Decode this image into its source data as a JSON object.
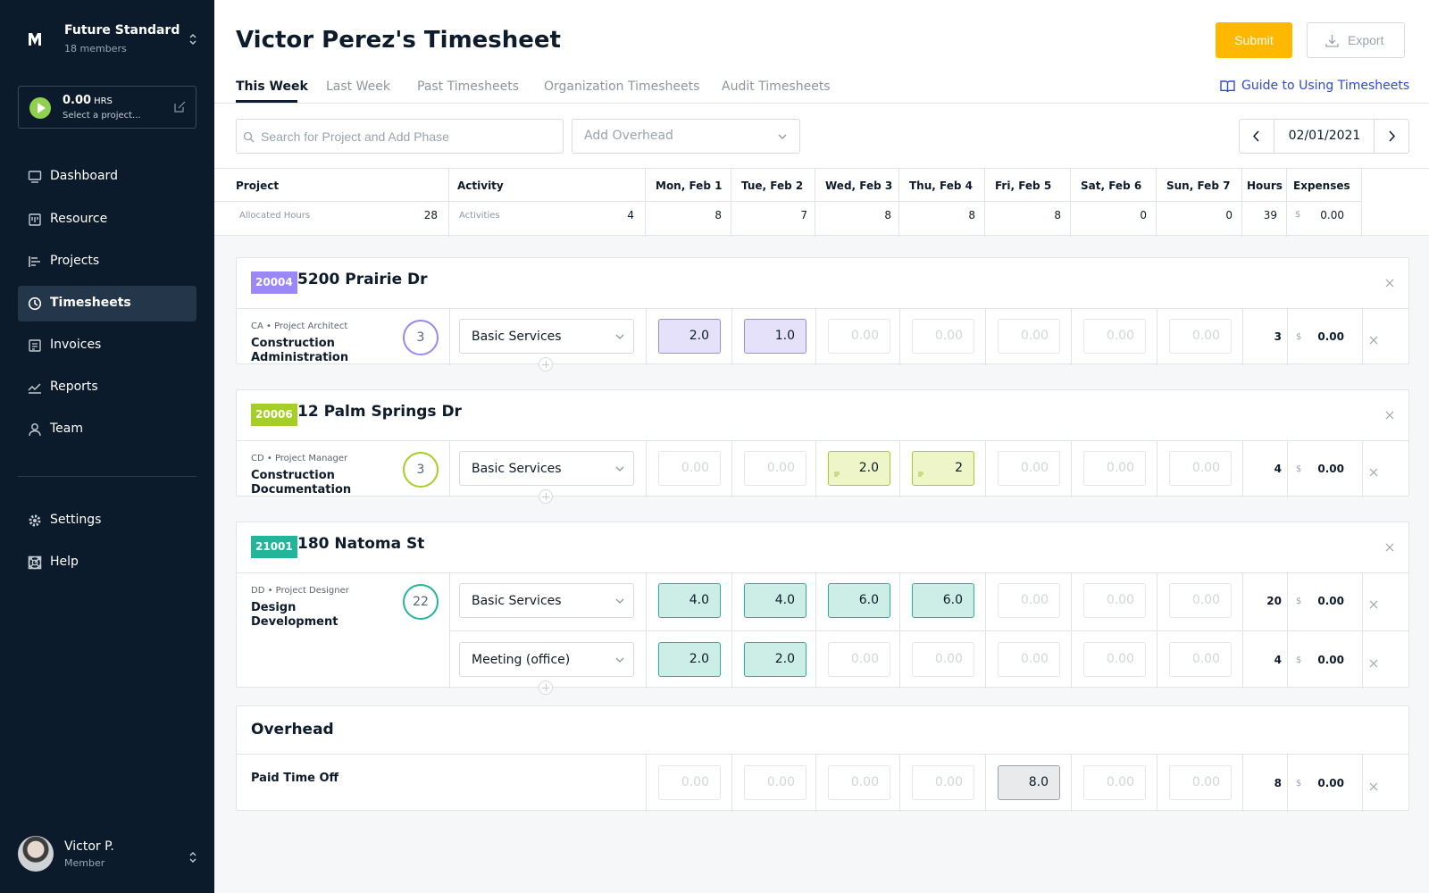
{
  "org": {
    "name": "Future Standard",
    "members": "18 members"
  },
  "timer": {
    "hours": "0.00",
    "unit": "HRS",
    "prompt": "Select a project..."
  },
  "nav": [
    {
      "label": "Dashboard",
      "icon": "monitor-icon"
    },
    {
      "label": "Resource",
      "icon": "calendar-icon"
    },
    {
      "label": "Projects",
      "icon": "gantt-icon"
    },
    {
      "label": "Timesheets",
      "icon": "clock-icon",
      "active": true
    },
    {
      "label": "Invoices",
      "icon": "invoice-icon"
    },
    {
      "label": "Reports",
      "icon": "chart-icon"
    },
    {
      "label": "Team",
      "icon": "person-icon"
    }
  ],
  "nav2": [
    {
      "label": "Settings",
      "icon": "gear-icon"
    },
    {
      "label": "Help",
      "icon": "lifebuoy-icon"
    }
  ],
  "user": {
    "name": "Victor P.",
    "role": "Member"
  },
  "page": {
    "title": "Victor Perez's Timesheet",
    "submit": "Submit",
    "export": "Export",
    "guide": "Guide to Using Timesheets"
  },
  "tabs": [
    "This Week",
    "Last Week",
    "Past Timesheets",
    "Organization Timesheets",
    "Audit Timesheets"
  ],
  "search": {
    "placeholder": "Search for Project and Add Phase"
  },
  "overhead_select": {
    "placeholder": "Add Overhead"
  },
  "date": "02/01/2021",
  "header": {
    "project": "Project",
    "activity": "Activity",
    "days": [
      "Mon, Feb 1",
      "Tue, Feb 2",
      "Wed, Feb 3",
      "Thu, Feb 4",
      "Fri, Feb 5",
      "Sat, Feb 6",
      "Sun, Feb 7"
    ],
    "hours": "Hours",
    "expenses": "Expenses",
    "allocated_label": "Allocated Hours",
    "allocated_value": "28",
    "activities_label": "Activities",
    "activities_value": "4",
    "day_totals": [
      "8",
      "7",
      "8",
      "8",
      "8",
      "0",
      "0"
    ],
    "hours_total": "39",
    "currency": "$",
    "expenses_total": "0.00"
  },
  "projects": [
    {
      "code": "20004",
      "name": "5200 Prairie Dr",
      "color": "#9b87f5",
      "fill": "#e6e1fb",
      "role": "CA • Project Architect",
      "phase": "Construction Administration",
      "allocated": "3",
      "rows": [
        {
          "activity": "Basic Services",
          "hours": [
            "2.0",
            "1.0",
            "0.00",
            "0.00",
            "0.00",
            "0.00",
            "0.00"
          ],
          "filled": [
            true,
            true,
            false,
            false,
            false,
            false,
            false
          ],
          "total": "3",
          "expenses": "0.00"
        }
      ]
    },
    {
      "code": "20006",
      "name": "12 Palm Springs Dr",
      "color": "#a5cf25",
      "fill": "#eef6c9",
      "role": "CD • Project Manager",
      "phase": "Construction Documentation",
      "allocated": "3",
      "rows": [
        {
          "activity": "Basic Services",
          "hours": [
            "0.00",
            "0.00",
            "2.0",
            "2",
            "0.00",
            "0.00",
            "0.00"
          ],
          "filled": [
            false,
            false,
            true,
            true,
            false,
            false,
            false
          ],
          "total": "4",
          "expenses": "0.00"
        }
      ]
    },
    {
      "code": "21001",
      "name": "180 Natoma St",
      "color": "#22b59a",
      "fill": "#cdeee6",
      "role": "DD • Project Designer",
      "phase": "Design Development",
      "allocated": "22",
      "rows": [
        {
          "activity": "Basic Services",
          "hours": [
            "4.0",
            "4.0",
            "6.0",
            "6.0",
            "0.00",
            "0.00",
            "0.00"
          ],
          "filled": [
            true,
            true,
            true,
            true,
            false,
            false,
            false
          ],
          "total": "20",
          "expenses": "0.00"
        },
        {
          "activity": "Meeting (office)",
          "hours": [
            "2.0",
            "2.0",
            "0.00",
            "0.00",
            "0.00",
            "0.00",
            "0.00"
          ],
          "filled": [
            true,
            true,
            false,
            false,
            false,
            false,
            false
          ],
          "total": "4",
          "expenses": "0.00"
        }
      ]
    }
  ],
  "overhead": {
    "title": "Overhead",
    "item": "Paid Time Off",
    "hours": [
      "0.00",
      "0.00",
      "0.00",
      "0.00",
      "8.0",
      "0.00",
      "0.00"
    ],
    "filled": [
      false,
      false,
      false,
      false,
      true,
      false,
      false
    ],
    "fill": "#e8eaec",
    "total": "8",
    "expenses": "0.00"
  }
}
